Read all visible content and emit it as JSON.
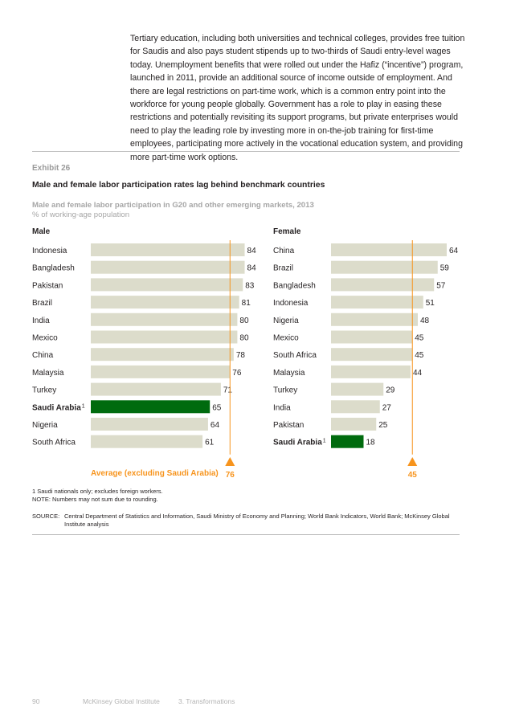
{
  "intro_text": "Tertiary education, including both universities and technical colleges, provides free tuition for Saudis and also pays student stipends up to two-thirds of Saudi entry-level wages today. Unemployment benefits that were rolled out under the Hafiz (“incentive”) program, launched in 2011, provide an additional source of income outside of employment. And there are legal restrictions on part-time work, which is a common entry point into the workforce for young people globally. Government has a role to play in easing these restrictions and potentially revisiting its support programs, but private enterprises would need to play the leading role by investing more in on-the-job training for first-time employees, participating more actively in the vocational education system, and providing more part-time work options.",
  "exhibit": {
    "label": "Exhibit 26",
    "title": "Male and female labor participation rates lag behind benchmark countries",
    "subtitle": "Male and female labor participation in G20 and other emerging markets, 2013",
    "unit": "% of working-age population"
  },
  "average_label": "Average (excluding Saudi Arabia)",
  "colors": {
    "bar": "#dcdccb",
    "highlight": "#006b0e",
    "average": "#f7941d"
  },
  "chart_data": [
    {
      "type": "bar",
      "orientation": "horizontal",
      "title": "Male",
      "categories": [
        "Indonesia",
        "Bangladesh",
        "Pakistan",
        "Brazil",
        "India",
        "Mexico",
        "China",
        "Malaysia",
        "Turkey",
        "Saudi Arabia",
        "Nigeria",
        "South Africa"
      ],
      "values": [
        84,
        84,
        83,
        81,
        80,
        80,
        78,
        76,
        71,
        65,
        64,
        61
      ],
      "highlight": "Saudi Arabia",
      "highlight_footnote": "1",
      "average": 76
    },
    {
      "type": "bar",
      "orientation": "horizontal",
      "title": "Female",
      "categories": [
        "China",
        "Brazil",
        "Bangladesh",
        "Indonesia",
        "Nigeria",
        "Mexico",
        "South Africa",
        "Malaysia",
        "Turkey",
        "India",
        "Pakistan",
        "Saudi Arabia"
      ],
      "values": [
        64,
        59,
        57,
        51,
        48,
        45,
        45,
        44,
        29,
        27,
        25,
        18
      ],
      "highlight": "Saudi Arabia",
      "highlight_footnote": "1",
      "average": 45
    }
  ],
  "footnote_1": "1   Saudi nationals only; excludes foreign workers.",
  "note": "NOTE: Numbers may not sum due to rounding.",
  "source_label": "SOURCE:",
  "source_text": "Central Department of Statistics and Information, Saudi Ministry of Economy and Planning; World Bank Indicators, World Bank; McKinsey Global Institute analysis",
  "footer": {
    "page": "90",
    "publisher": "McKinsey Global Institute",
    "section": "3. Transformations"
  }
}
